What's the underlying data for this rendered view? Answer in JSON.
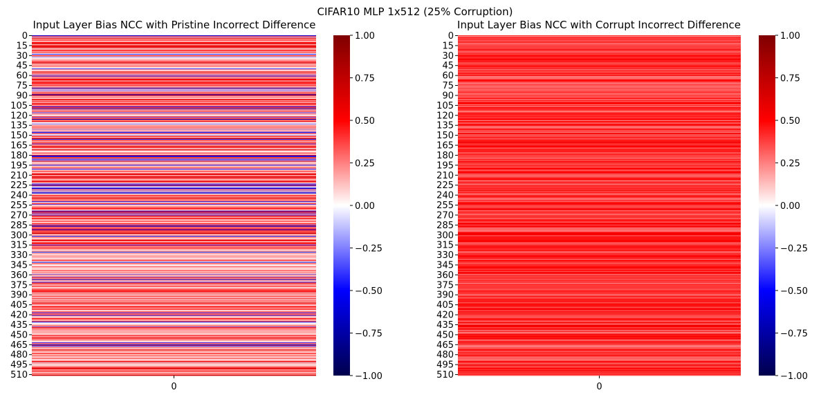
{
  "suptitle": "CIFAR10 MLP 1x512 (25% Corruption)",
  "chart_data": [
    {
      "type": "heatmap",
      "title": "Input Layer Bias NCC with Pristine Incorrect Difference",
      "rows": 512,
      "columns": [
        "0"
      ],
      "ytick_labels": [
        "0",
        "15",
        "30",
        "45",
        "60",
        "75",
        "90",
        "105",
        "120",
        "135",
        "150",
        "165",
        "180",
        "195",
        "210",
        "225",
        "240",
        "255",
        "270",
        "285",
        "300",
        "315",
        "330",
        "345",
        "360",
        "375",
        "390",
        "405",
        "420",
        "435",
        "450",
        "465",
        "480",
        "495",
        "510"
      ],
      "colorbar": {
        "min": -1.0,
        "max": 1.0,
        "ticks": [
          "1.00",
          "0.75",
          "0.50",
          "0.25",
          "0.00",
          "−0.25",
          "−0.50",
          "−0.75",
          "−1.00"
        ]
      },
      "colormap": "seismic",
      "value_profile": "mixed values mostly between -0.5 and 0.6, predominantly positive (light red/pink) with scattered negative (blue) rows",
      "values_mean": 0.15
    },
    {
      "type": "heatmap",
      "title": "Input Layer Bias NCC with Corrupt Incorrect Difference",
      "rows": 512,
      "columns": [
        "0"
      ],
      "ytick_labels": [
        "0",
        "15",
        "30",
        "45",
        "60",
        "75",
        "90",
        "105",
        "120",
        "135",
        "150",
        "165",
        "180",
        "195",
        "210",
        "225",
        "240",
        "255",
        "270",
        "285",
        "300",
        "315",
        "330",
        "345",
        "360",
        "375",
        "390",
        "405",
        "420",
        "435",
        "450",
        "465",
        "480",
        "495",
        "510"
      ],
      "colorbar": {
        "min": -1.0,
        "max": 1.0,
        "ticks": [
          "1.00",
          "0.75",
          "0.50",
          "0.25",
          "0.00",
          "−0.25",
          "−0.50",
          "−0.75",
          "−1.00"
        ]
      },
      "colormap": "seismic",
      "value_profile": "all positive values roughly between 0.25 and 0.55 (uniformly red)",
      "values_mean": 0.4
    }
  ]
}
